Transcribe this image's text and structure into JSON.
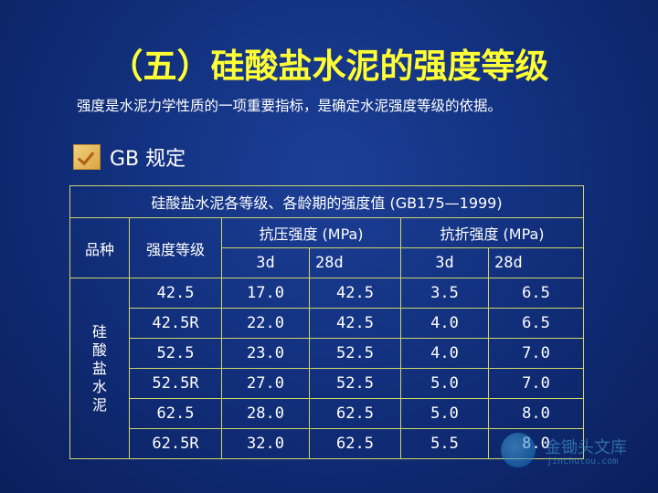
{
  "title": "（五）硅酸盐水泥的强度等级",
  "subtitle": "强度是水泥力学性质的一项重要指标，是确定水泥强度等级的依据。",
  "bullet": {
    "label": "GB 规定",
    "icon": "checkmark-icon"
  },
  "table": {
    "caption": "硅酸盐水泥各等级、各龄期的强度值 (GB175—1999)",
    "headers": {
      "variety": "品种",
      "grade": "强度等级",
      "compressive": "抗压强度 (MPa)",
      "flexural": "抗折强度 (MPa)",
      "d3": "3d",
      "d28": "28d"
    },
    "variety_label": [
      "硅",
      "酸",
      "盐",
      "水",
      "泥"
    ],
    "rows": [
      [
        "42.5",
        "17.0",
        "42.5",
        "3.5",
        "6.5"
      ],
      [
        "42.5R",
        "22.0",
        "42.5",
        "4.0",
        "6.5"
      ],
      [
        "52.5",
        "23.0",
        "52.5",
        "4.0",
        "7.0"
      ],
      [
        "52.5R",
        "27.0",
        "52.5",
        "5.0",
        "7.0"
      ],
      [
        "62.5",
        "28.0",
        "62.5",
        "5.0",
        "8.0"
      ],
      [
        "62.5R",
        "32.0",
        "62.5",
        "5.5",
        "8.0"
      ]
    ]
  },
  "watermark": {
    "name": "金锄头文库",
    "url": "jinchutou.com"
  },
  "colors": {
    "title": "#ffff33",
    "border": "#cfd66a",
    "background": "#12307e"
  }
}
